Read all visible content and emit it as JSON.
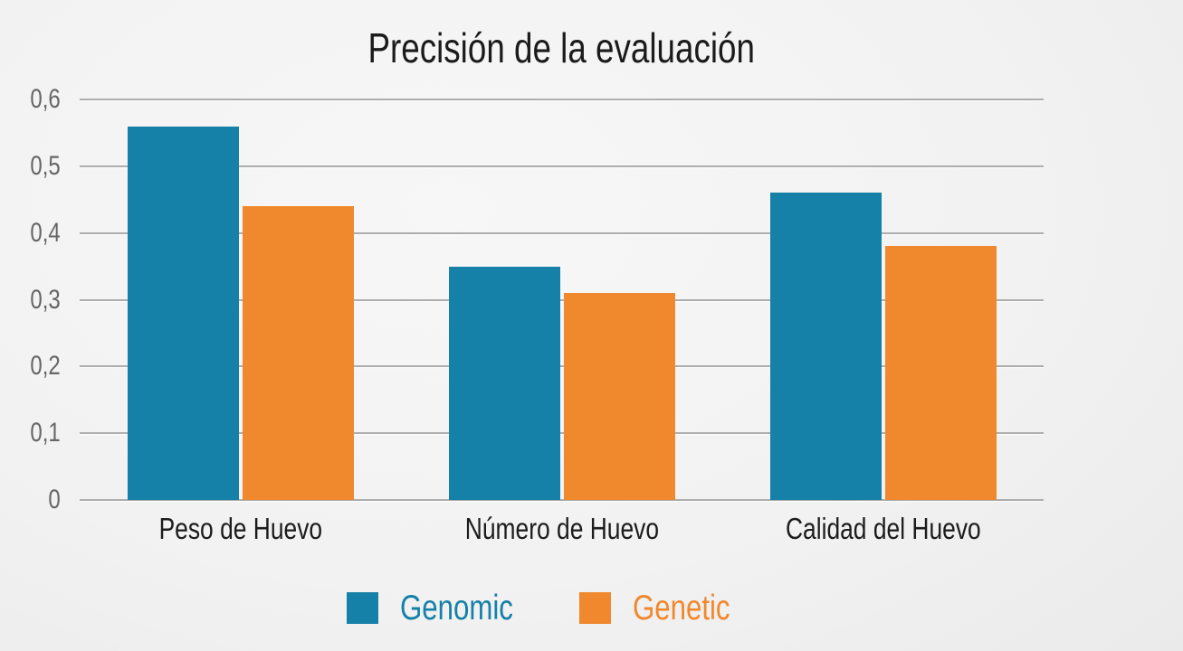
{
  "chart_data": {
    "type": "bar",
    "title": "Precisión de la evaluación",
    "categories": [
      "Peso de Huevo",
      "Número de Huevo",
      "Calidad del Huevo"
    ],
    "series": [
      {
        "name": "Genomic",
        "color": "#1580A8",
        "values": [
          0.56,
          0.35,
          0.46
        ]
      },
      {
        "name": "Genetic",
        "color": "#F0882D",
        "values": [
          0.44,
          0.31,
          0.38
        ]
      }
    ],
    "xlabel": "",
    "ylabel": "",
    "ylim": [
      0,
      0.6
    ],
    "y_tick_labels": [
      "0",
      "0,1",
      "0,2",
      "0,3",
      "0,4",
      "0,5",
      "0,6"
    ],
    "grid": true,
    "legend_position": "bottom"
  },
  "colors": {
    "title_text": "#1B1B1B",
    "axis_label_text": "#1C1C1C",
    "tick_label_text": "#666666",
    "gridline": "#ADADAD",
    "background_light": "#F7F7F7",
    "background_dark": "#E6E6E6"
  }
}
